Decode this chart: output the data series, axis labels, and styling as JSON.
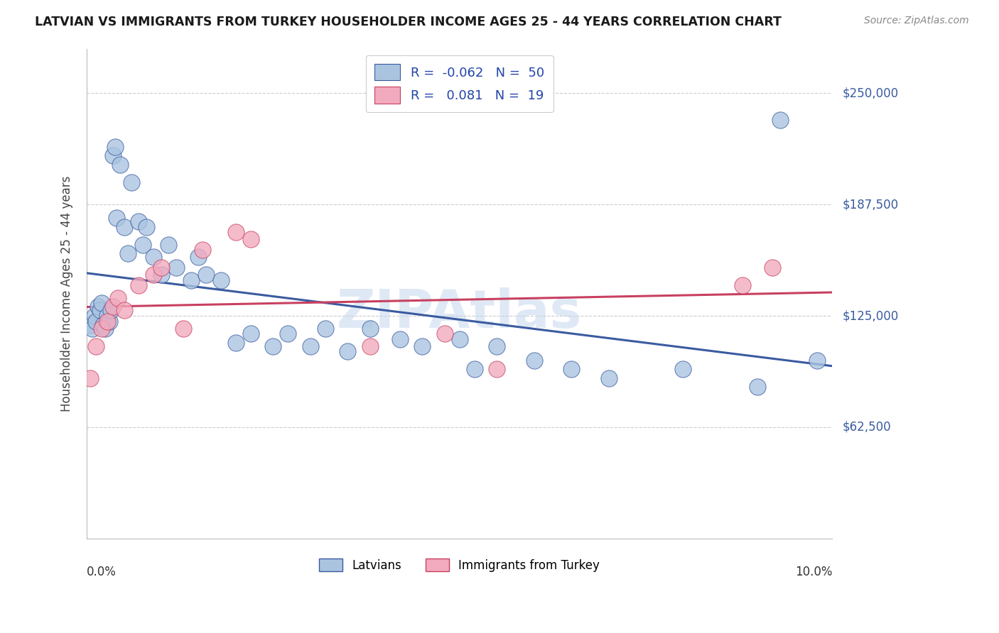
{
  "title": "LATVIAN VS IMMIGRANTS FROM TURKEY HOUSEHOLDER INCOME AGES 25 - 44 YEARS CORRELATION CHART",
  "source": "Source: ZipAtlas.com",
  "ylabel": "Householder Income Ages 25 - 44 years",
  "ytick_labels": [
    "$62,500",
    "$125,000",
    "$187,500",
    "$250,000"
  ],
  "ytick_values": [
    62500,
    125000,
    187500,
    250000
  ],
  "xmin": 0.0,
  "xmax": 10.0,
  "ymin": 0,
  "ymax": 275000,
  "legend_label1": "Latvians",
  "legend_label2": "Immigrants from Turkey",
  "color_blue": "#aac4e0",
  "color_pink": "#f2aabe",
  "color_blue_line": "#3a5ba0",
  "color_pink_line": "#c84060",
  "watermark": "ZIPAtlas",
  "latvian_x": [
    0.05,
    0.08,
    0.1,
    0.12,
    0.15,
    0.18,
    0.2,
    0.22,
    0.25,
    0.28,
    0.3,
    0.32,
    0.35,
    0.38,
    0.4,
    0.45,
    0.5,
    0.55,
    0.6,
    0.7,
    0.75,
    0.8,
    0.9,
    1.0,
    1.1,
    1.2,
    1.4,
    1.5,
    1.6,
    1.8,
    2.0,
    2.2,
    2.5,
    2.7,
    3.0,
    3.2,
    3.5,
    3.8,
    4.2,
    4.5,
    5.0,
    5.2,
    5.5,
    6.0,
    6.5,
    7.0,
    8.0,
    9.0,
    9.3,
    9.8
  ],
  "latvian_y": [
    120000,
    118000,
    125000,
    122000,
    130000,
    128000,
    132000,
    120000,
    118000,
    125000,
    122000,
    128000,
    215000,
    220000,
    180000,
    210000,
    175000,
    160000,
    200000,
    178000,
    165000,
    175000,
    158000,
    148000,
    165000,
    152000,
    145000,
    158000,
    148000,
    145000,
    110000,
    115000,
    108000,
    115000,
    108000,
    118000,
    105000,
    118000,
    112000,
    108000,
    112000,
    95000,
    108000,
    100000,
    95000,
    90000,
    95000,
    85000,
    235000,
    100000
  ],
  "turkey_x": [
    0.05,
    0.12,
    0.2,
    0.28,
    0.35,
    0.42,
    0.5,
    0.7,
    0.9,
    1.0,
    1.3,
    1.55,
    2.0,
    2.2,
    3.8,
    4.8,
    5.5,
    8.8,
    9.2
  ],
  "turkey_y": [
    90000,
    108000,
    118000,
    122000,
    130000,
    135000,
    128000,
    142000,
    148000,
    152000,
    118000,
    162000,
    172000,
    168000,
    108000,
    115000,
    95000,
    142000,
    152000
  ]
}
